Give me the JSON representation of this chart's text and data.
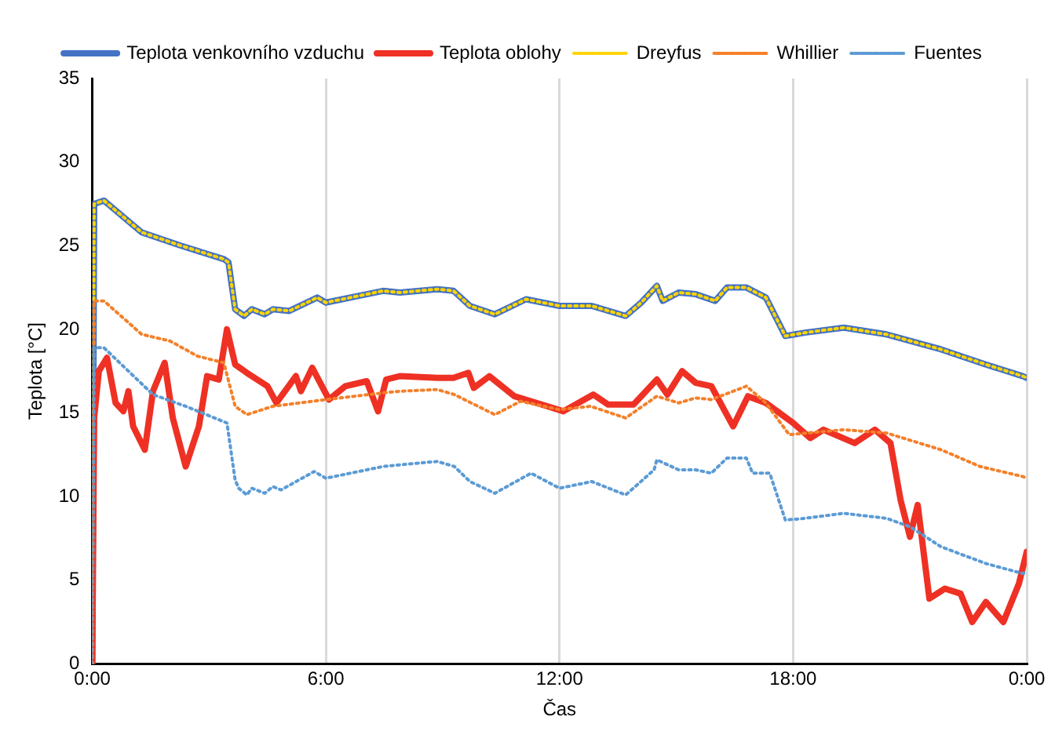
{
  "chart_data": {
    "type": "line",
    "xlabel": "Čas",
    "ylabel": "Teplota [°C]",
    "xlim": [
      0,
      24
    ],
    "ylim": [
      0,
      35
    ],
    "xticks": [
      {
        "value": 0,
        "label": "0:00"
      },
      {
        "value": 6,
        "label": "6:00"
      },
      {
        "value": 12,
        "label": "12:00"
      },
      {
        "value": 18,
        "label": "18:00"
      },
      {
        "value": 24,
        "label": "0:00"
      }
    ],
    "yticks": [
      0,
      5,
      10,
      15,
      20,
      25,
      30,
      35
    ],
    "grid": "x",
    "legend": "top",
    "marker": "none",
    "series": [
      {
        "name": "Teplota venkovního vzduchu",
        "color": "#4472c4",
        "line_style": "solid",
        "x": [
          0,
          0.05,
          0.3,
          1.27,
          2.28,
          3.38,
          3.5,
          3.67,
          3.9,
          4.1,
          4.43,
          4.64,
          5.06,
          5.78,
          6.0,
          7.47,
          7.9,
          8.86,
          9.28,
          9.7,
          10.34,
          11.14,
          12.0,
          12.83,
          13.7,
          14.1,
          14.5,
          14.65,
          15.06,
          15.5,
          16.0,
          16.3,
          16.8,
          17.3,
          17.8,
          18.3,
          19.3,
          20.4,
          21.8,
          22.95,
          23.9,
          24
        ],
        "values": [
          0,
          27.5,
          27.7,
          25.8,
          25.0,
          24.2,
          24.0,
          21.2,
          20.8,
          21.2,
          20.9,
          21.2,
          21.1,
          21.9,
          21.6,
          22.3,
          22.2,
          22.4,
          22.3,
          21.4,
          20.9,
          21.8,
          21.4,
          21.4,
          20.8,
          21.6,
          22.6,
          21.7,
          22.2,
          22.1,
          21.7,
          22.5,
          22.5,
          21.9,
          19.6,
          19.8,
          20.1,
          19.7,
          18.8,
          17.9,
          17.2,
          17.1
        ]
      },
      {
        "name": "Teplota oblohy",
        "color": "#ee3124",
        "line_style": "solid",
        "x": [
          0,
          0.05,
          0.17,
          0.38,
          0.6,
          0.8,
          0.93,
          1.05,
          1.35,
          1.56,
          1.86,
          2.07,
          2.4,
          2.74,
          2.95,
          3.25,
          3.46,
          3.67,
          3.97,
          4.5,
          4.73,
          5.23,
          5.36,
          5.65,
          6.08,
          6.5,
          7.05,
          7.34,
          7.55,
          7.9,
          8.86,
          9.28,
          9.66,
          9.8,
          10.2,
          10.84,
          11.69,
          12.1,
          12.87,
          13.25,
          13.9,
          14.5,
          14.77,
          15.15,
          15.5,
          15.9,
          16.46,
          16.84,
          17.3,
          18.0,
          18.44,
          18.78,
          19.58,
          20.1,
          20.5,
          20.76,
          21.0,
          21.2,
          21.5,
          21.9,
          22.3,
          22.6,
          22.95,
          23.4,
          23.8,
          24
        ],
        "values": [
          0,
          14.7,
          17.5,
          18.3,
          15.6,
          15.1,
          16.3,
          14.2,
          12.8,
          16.3,
          18.0,
          14.7,
          11.8,
          14.2,
          17.2,
          17.0,
          20.0,
          17.9,
          17.4,
          16.6,
          15.6,
          17.2,
          16.3,
          17.7,
          15.8,
          16.6,
          16.9,
          15.1,
          17.0,
          17.2,
          17.1,
          17.1,
          17.4,
          16.5,
          17.2,
          16.0,
          15.4,
          15.1,
          16.1,
          15.5,
          15.5,
          17.0,
          16.1,
          17.5,
          16.8,
          16.6,
          14.2,
          16.0,
          15.6,
          14.4,
          13.5,
          14.0,
          13.2,
          14.0,
          13.2,
          9.8,
          7.6,
          9.5,
          3.9,
          4.5,
          4.2,
          2.5,
          3.7,
          2.5,
          4.8,
          6.7
        ]
      },
      {
        "name": "Dreyfus",
        "color": "#ffd400",
        "line_style": "dotted",
        "x": [
          0,
          0.05,
          0.3,
          1.27,
          2.28,
          3.38,
          3.5,
          3.67,
          3.9,
          4.1,
          4.43,
          4.64,
          5.06,
          5.78,
          6.0,
          7.47,
          7.9,
          8.86,
          9.28,
          9.7,
          10.34,
          11.14,
          12.0,
          12.83,
          13.7,
          14.1,
          14.5,
          14.65,
          15.06,
          15.5,
          16.0,
          16.3,
          16.8,
          17.3,
          17.8,
          18.3,
          19.3,
          20.4,
          21.8,
          22.95,
          23.9,
          24
        ],
        "values": [
          0,
          27.5,
          27.7,
          25.8,
          25.0,
          24.2,
          24.0,
          21.2,
          20.8,
          21.2,
          20.9,
          21.2,
          21.1,
          21.9,
          21.6,
          22.3,
          22.2,
          22.4,
          22.3,
          21.4,
          20.9,
          21.8,
          21.4,
          21.4,
          20.8,
          21.6,
          22.6,
          21.7,
          22.2,
          22.1,
          21.7,
          22.5,
          22.5,
          21.9,
          19.6,
          19.8,
          20.1,
          19.7,
          18.8,
          17.9,
          17.2,
          17.1
        ]
      },
      {
        "name": "Whillier",
        "color": "#f4802a",
        "line_style": "dotted",
        "x": [
          0,
          0.05,
          0.3,
          1.27,
          2.0,
          2.7,
          3.38,
          3.67,
          3.97,
          4.64,
          6.0,
          7.47,
          7.9,
          8.86,
          9.3,
          10.34,
          11.0,
          12.0,
          12.8,
          13.7,
          14.5,
          15.06,
          15.5,
          15.9,
          16.8,
          17.3,
          17.9,
          19.3,
          20.4,
          21.8,
          22.8,
          23.9,
          24
        ],
        "values": [
          0,
          21.7,
          21.7,
          19.7,
          19.3,
          18.4,
          18.0,
          15.4,
          14.9,
          15.4,
          15.8,
          16.2,
          16.3,
          16.4,
          16.1,
          14.9,
          15.7,
          15.2,
          15.4,
          14.7,
          16.0,
          15.6,
          15.9,
          15.8,
          16.6,
          15.6,
          13.7,
          14.0,
          13.8,
          12.8,
          11.8,
          11.2,
          11.1
        ]
      },
      {
        "name": "Fuentes",
        "color": "#5b9bd5",
        "line_style": "dotted",
        "x": [
          0,
          0.05,
          0.3,
          1.56,
          2.4,
          3.46,
          3.67,
          3.76,
          3.97,
          4.1,
          4.43,
          4.64,
          4.85,
          5.7,
          6.0,
          7.47,
          7.9,
          8.86,
          9.3,
          9.7,
          10.34,
          11.27,
          12.0,
          12.83,
          13.7,
          14.43,
          14.5,
          15.06,
          15.5,
          15.9,
          16.3,
          16.8,
          16.96,
          17.4,
          17.8,
          18.3,
          19.3,
          20.4,
          21.0,
          21.8,
          22.95,
          23.9,
          24
        ],
        "values": [
          0,
          18.9,
          18.9,
          16.1,
          15.4,
          14.4,
          11.0,
          10.5,
          10.1,
          10.5,
          10.2,
          10.6,
          10.4,
          11.5,
          11.1,
          11.8,
          11.9,
          12.1,
          11.8,
          10.9,
          10.2,
          11.4,
          10.5,
          10.9,
          10.1,
          11.6,
          12.2,
          11.6,
          11.6,
          11.4,
          12.3,
          12.3,
          11.4,
          11.4,
          8.6,
          8.7,
          9.0,
          8.7,
          8.2,
          7.0,
          6.0,
          5.4,
          5.5
        ]
      }
    ]
  }
}
